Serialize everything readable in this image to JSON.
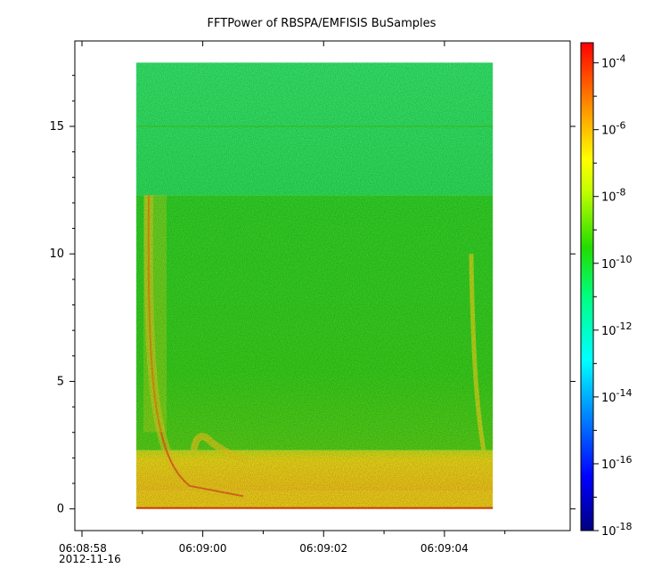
{
  "chart_data": {
    "type": "heatmap",
    "title": "FFTPower of RBSPA/EMFISIS  BuSamples",
    "xlabel": "",
    "ylabel": "",
    "x_ticks": [
      "06:08:58",
      "06:09:00",
      "06:09:02",
      "06:09:04"
    ],
    "x_date_label": "2012-11-16",
    "x_range": [
      "06:08:58",
      "06:09:06"
    ],
    "y_ticks": [
      0,
      5,
      10,
      15
    ],
    "ylim": [
      -0.85,
      18.35
    ],
    "data_extent": {
      "time_start": "06:08:58.9",
      "time_end": "06:09:04.8",
      "freq_min": 0,
      "freq_max": 17.5
    },
    "colorbar": {
      "scale": "log",
      "range": [
        1e-18,
        0.0004
      ],
      "ticks": [
        {
          "base": "10",
          "exp": "-4",
          "value": 0.0001
        },
        {
          "base": "10",
          "exp": "-6",
          "value": 1e-06
        },
        {
          "base": "10",
          "exp": "-8",
          "value": 1e-08
        },
        {
          "base": "10",
          "exp": "-10",
          "value": 1e-10
        },
        {
          "base": "10",
          "exp": "-12",
          "value": 1e-12
        },
        {
          "base": "10",
          "exp": "-14",
          "value": 1e-14
        },
        {
          "base": "10",
          "exp": "-16",
          "value": 1e-16
        },
        {
          "base": "10",
          "exp": "-18",
          "value": 1e-18
        }
      ]
    },
    "colors": {
      "background_upper": "#2ee85a",
      "background_lower": "#3ad41c",
      "low_band": "#f5d21a",
      "bottom_line": "#e8440a",
      "feature": "#e6dc1a"
    }
  }
}
